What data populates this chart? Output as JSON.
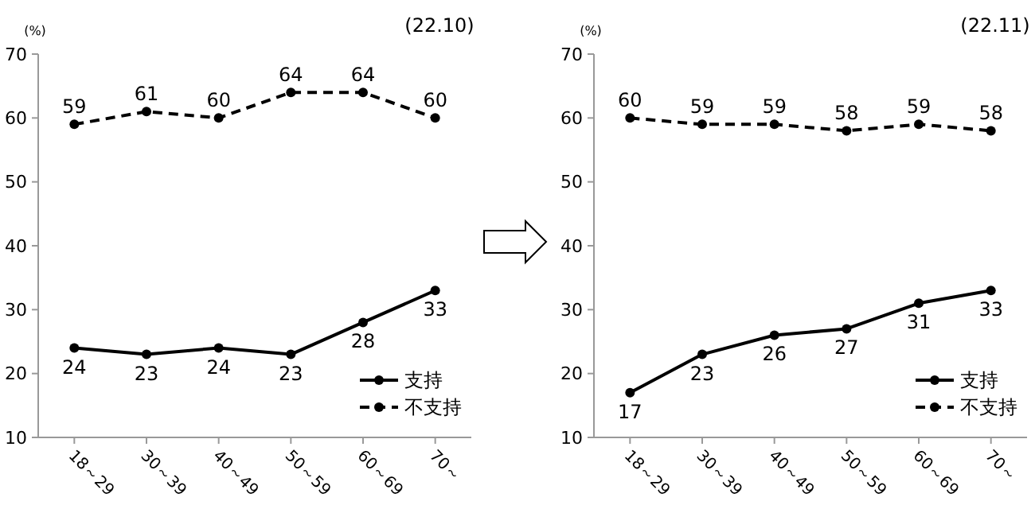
{
  "chart_data": [
    {
      "type": "line",
      "title": "(22.10)",
      "ylabel": "(%)",
      "categories": [
        "18～29",
        "30～39",
        "40～49",
        "50～59",
        "60～69",
        "70～"
      ],
      "ylim": [
        10,
        70
      ],
      "yticks": [
        10,
        20,
        30,
        40,
        50,
        60,
        70
      ],
      "data_labels": true,
      "legend": "bottom right",
      "marker": "circle",
      "grid": false,
      "series": [
        {
          "name": "支持",
          "color": "#000000",
          "line_style": "solid",
          "values": [
            24,
            23,
            24,
            23,
            28,
            33
          ]
        },
        {
          "name": "不支持",
          "color": "#000000",
          "line_style": "dashed",
          "values": [
            59,
            61,
            60,
            64,
            64,
            60
          ]
        }
      ]
    },
    {
      "type": "line",
      "title": "(22.11)",
      "ylabel": "(%)",
      "categories": [
        "18～29",
        "30～39",
        "40～49",
        "50～59",
        "60～69",
        "70～"
      ],
      "ylim": [
        10,
        70
      ],
      "yticks": [
        10,
        20,
        30,
        40,
        50,
        60,
        70
      ],
      "data_labels": true,
      "legend": "bottom right",
      "marker": "circle",
      "grid": false,
      "series": [
        {
          "name": "支持",
          "color": "#000000",
          "line_style": "solid",
          "values": [
            17,
            23,
            26,
            27,
            31,
            33
          ]
        },
        {
          "name": "不支持",
          "color": "#000000",
          "line_style": "dashed",
          "values": [
            60,
            59,
            59,
            58,
            59,
            58
          ]
        }
      ]
    }
  ]
}
